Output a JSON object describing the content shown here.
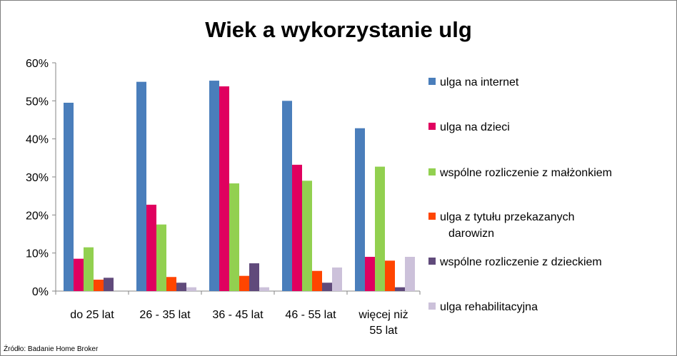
{
  "chart_data": {
    "type": "bar",
    "title": "Wiek a wykorzystanie ulg",
    "source": "Źródło: Badanie Home Broker",
    "categories": [
      "do 25 lat",
      "26 - 35 lat",
      "36 - 45 lat",
      "46 - 55 lat",
      "więcej niż 55 lat"
    ],
    "category_lines": [
      [
        "do 25 lat"
      ],
      [
        "26 - 35 lat"
      ],
      [
        "36 - 45 lat"
      ],
      [
        "46 - 55 lat"
      ],
      [
        "więcej niż",
        "55 lat"
      ]
    ],
    "y_ticks": [
      "0%",
      "10%",
      "20%",
      "30%",
      "40%",
      "50%",
      "60%"
    ],
    "ylim": [
      0,
      60
    ],
    "grid": false,
    "legend_position": "right",
    "series": [
      {
        "name": "ulga na internet",
        "name_lines": [
          "ulga na internet"
        ],
        "color": "#4a7ebb",
        "values": [
          49.5,
          55,
          55.3,
          50,
          42.8
        ]
      },
      {
        "name": "ulga na dzieci",
        "name_lines": [
          "ulga na dzieci"
        ],
        "color": "#e0005f",
        "values": [
          8.5,
          22.7,
          53.8,
          33.2,
          9
        ]
      },
      {
        "name": "wspólne rozliczenie z małżonkiem",
        "name_lines": [
          "wspólne rozliczenie z małżonkiem"
        ],
        "color": "#92d050",
        "values": [
          11.5,
          17.5,
          28.3,
          29,
          32.7
        ]
      },
      {
        "name": "ulga z tytułu przekazanych darowizn",
        "name_lines": [
          "ulga z tytułu przekazanych",
          "darowizn"
        ],
        "color": "#ff4500",
        "values": [
          3,
          3.7,
          4,
          5.3,
          8
        ]
      },
      {
        "name": "wspólne rozliczenie z dzieckiem",
        "name_lines": [
          "wspólne rozliczenie z dzieckiem"
        ],
        "color": "#604a7b",
        "values": [
          3.5,
          2.2,
          7.3,
          2.2,
          1
        ]
      },
      {
        "name": "ulga rehabilitacyjna",
        "name_lines": [
          "ulga rehabilitacyjna"
        ],
        "color": "#ccc1da",
        "values": [
          0,
          1,
          1,
          6.2,
          9
        ]
      }
    ]
  }
}
